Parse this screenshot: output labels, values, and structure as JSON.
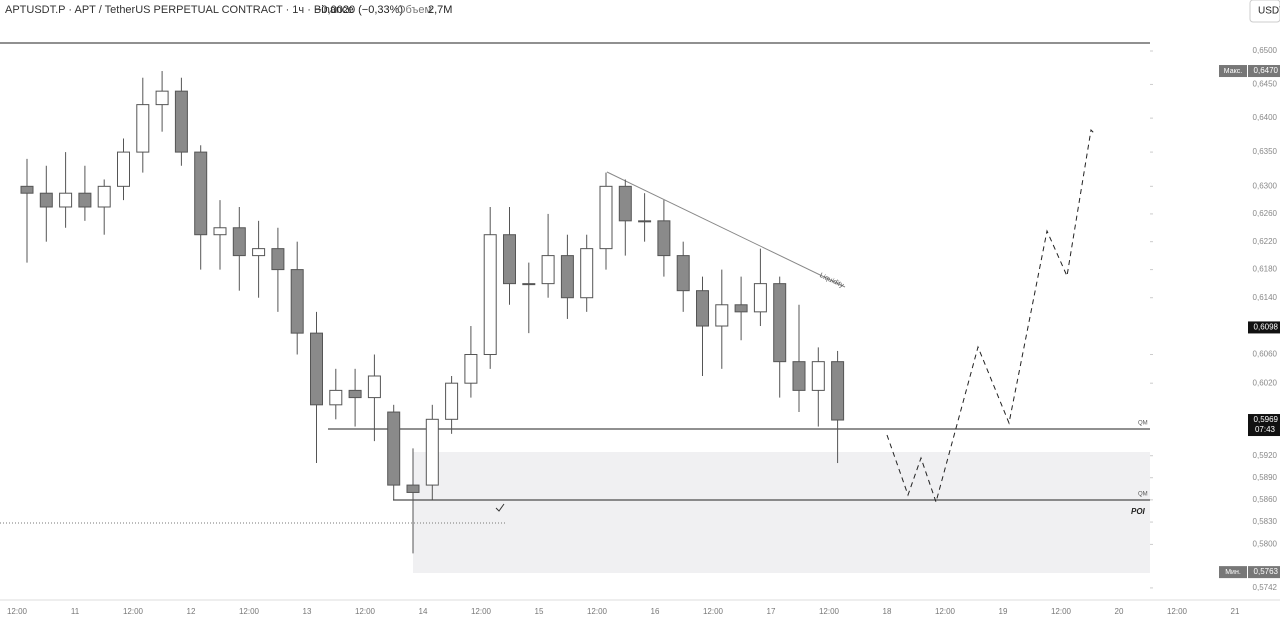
{
  "header": {
    "symbol": "APTUSDT.P · APT / TetherUS PERPETUAL CONTRACT · 1ч · Binance",
    "change": "−0,0020 (−0,33%)",
    "volume_label": "Объем",
    "volume": "2,7M",
    "currency": "USDT"
  },
  "chart_data": {
    "type": "candlestick",
    "categories": [
      null,
      null,
      null,
      null,
      null,
      null,
      null,
      null,
      null,
      null,
      null,
      null,
      null,
      null,
      null,
      null,
      null,
      null,
      null,
      null,
      null,
      null,
      null,
      null,
      null,
      null,
      null,
      null,
      null,
      null,
      null,
      null,
      null,
      null,
      null,
      null,
      null,
      null,
      null,
      null,
      null,
      null,
      null
    ],
    "open": [
      0.63,
      0.629,
      0.627,
      0.629,
      0.627,
      0.63,
      0.635,
      0.642,
      0.644,
      0.635,
      0.623,
      0.624,
      0.62,
      0.621,
      0.618,
      0.609,
      0.599,
      0.601,
      0.6,
      0.598,
      0.588,
      0.588,
      0.597,
      0.602,
      0.606,
      0.623,
      0.616,
      0.616,
      0.62,
      0.614,
      0.621,
      0.63,
      0.625,
      0.625,
      0.62,
      0.615,
      0.61,
      0.613,
      0.612,
      0.616,
      0.605,
      0.601,
      0.605
    ],
    "high": [
      0.634,
      0.633,
      0.635,
      0.633,
      0.631,
      0.637,
      0.646,
      0.647,
      0.646,
      0.636,
      0.628,
      0.627,
      0.625,
      0.624,
      0.622,
      0.612,
      0.604,
      0.604,
      0.606,
      0.599,
      0.593,
      0.599,
      0.603,
      0.61,
      0.627,
      0.627,
      0.619,
      0.626,
      0.623,
      0.623,
      0.632,
      0.631,
      0.629,
      0.628,
      0.622,
      0.617,
      0.618,
      0.617,
      0.621,
      0.617,
      0.613,
      0.607,
      0.6065
    ],
    "low": [
      0.619,
      0.622,
      0.624,
      0.625,
      0.623,
      0.628,
      0.632,
      0.638,
      0.633,
      0.618,
      0.618,
      0.615,
      0.614,
      0.612,
      0.606,
      0.591,
      0.597,
      0.596,
      0.594,
      0.586,
      0.5788,
      0.586,
      0.595,
      0.6,
      0.604,
      0.613,
      0.609,
      0.614,
      0.611,
      0.612,
      0.618,
      0.62,
      0.622,
      0.617,
      0.612,
      0.603,
      0.604,
      0.608,
      0.61,
      0.6,
      0.598,
      0.596,
      0.591
    ],
    "close": [
      0.629,
      0.627,
      0.629,
      0.627,
      0.63,
      0.635,
      0.642,
      0.644,
      0.635,
      0.623,
      0.624,
      0.62,
      0.621,
      0.618,
      0.609,
      0.599,
      0.601,
      0.6,
      0.603,
      0.588,
      0.587,
      0.597,
      0.602,
      0.606,
      0.623,
      0.616,
      0.616,
      0.62,
      0.614,
      0.621,
      0.63,
      0.625,
      0.625,
      0.62,
      0.615,
      0.61,
      0.613,
      0.612,
      0.616,
      0.605,
      0.601,
      0.605,
      0.5969
    ],
    "up_color": "#ffffff",
    "down_color": "#8a8a8a",
    "log_scale": true,
    "ylim": [
      0.5726,
      0.6577
    ],
    "yticks": [
      {
        "value": 0.65,
        "label": "0,6500"
      },
      {
        "value": 0.645,
        "label": "0,6450"
      },
      {
        "value": 0.64,
        "label": "0,6400"
      },
      {
        "value": 0.635,
        "label": "0,6350"
      },
      {
        "value": 0.63,
        "label": "0,6300"
      },
      {
        "value": 0.626,
        "label": "0,6260"
      },
      {
        "value": 0.622,
        "label": "0,6220"
      },
      {
        "value": 0.618,
        "label": "0,6180"
      },
      {
        "value": 0.614,
        "label": "0,6140"
      },
      {
        "value": 0.606,
        "label": "0,6060"
      },
      {
        "value": 0.602,
        "label": "0,6020"
      },
      {
        "value": 0.592,
        "label": "0,5920"
      },
      {
        "value": 0.589,
        "label": "0,5890"
      },
      {
        "value": 0.586,
        "label": "0,5860"
      },
      {
        "value": 0.583,
        "label": "0,5830"
      },
      {
        "value": 0.58,
        "label": "0,5800"
      },
      {
        "value": 0.5742,
        "label": "0,5742"
      }
    ],
    "x_labels": [
      "12:00",
      "11",
      "12:00",
      "12",
      "12:00",
      "13",
      "12:00",
      "14",
      "12:00",
      "15",
      "12:00",
      "16",
      "12:00",
      "17",
      "12:00",
      "18",
      "12:00",
      "19",
      "12:00",
      "20",
      "12:00",
      "21"
    ],
    "price_labels": [
      {
        "value": 0.647,
        "label": "0,6470",
        "tag": "Макс."
      },
      {
        "value": 0.6098,
        "label": "0,6098"
      },
      {
        "value": 0.5969,
        "label": "0,5969",
        "sub": "07:43"
      },
      {
        "value": 0.5763,
        "label": "0,5763",
        "tag": "Мин."
      }
    ],
    "annotations": [
      "QM",
      "QM",
      "POI",
      "Liquidity"
    ]
  }
}
